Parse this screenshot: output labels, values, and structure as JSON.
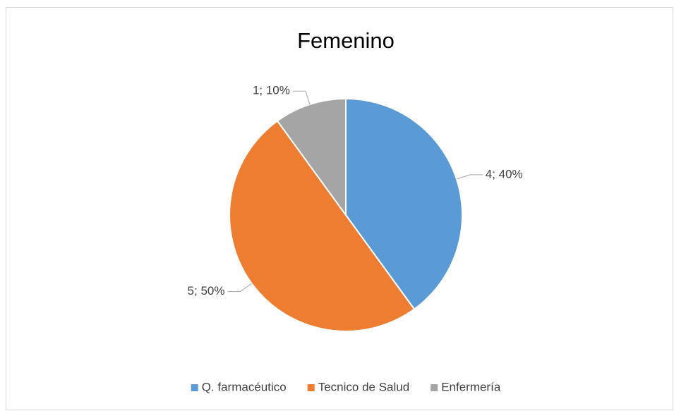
{
  "chart_data": {
    "type": "pie",
    "title": "Femenino",
    "categories": [
      "Q. farmacéutico",
      "Tecnico de Salud",
      "Enfermería"
    ],
    "values": [
      4,
      5,
      1
    ],
    "value_labels": [
      "4; 40%",
      "5; 50%",
      "1; 10%"
    ],
    "colors": [
      "#5b9bd5",
      "#ed7d31",
      "#a5a5a5"
    ],
    "legend": "bottom"
  }
}
